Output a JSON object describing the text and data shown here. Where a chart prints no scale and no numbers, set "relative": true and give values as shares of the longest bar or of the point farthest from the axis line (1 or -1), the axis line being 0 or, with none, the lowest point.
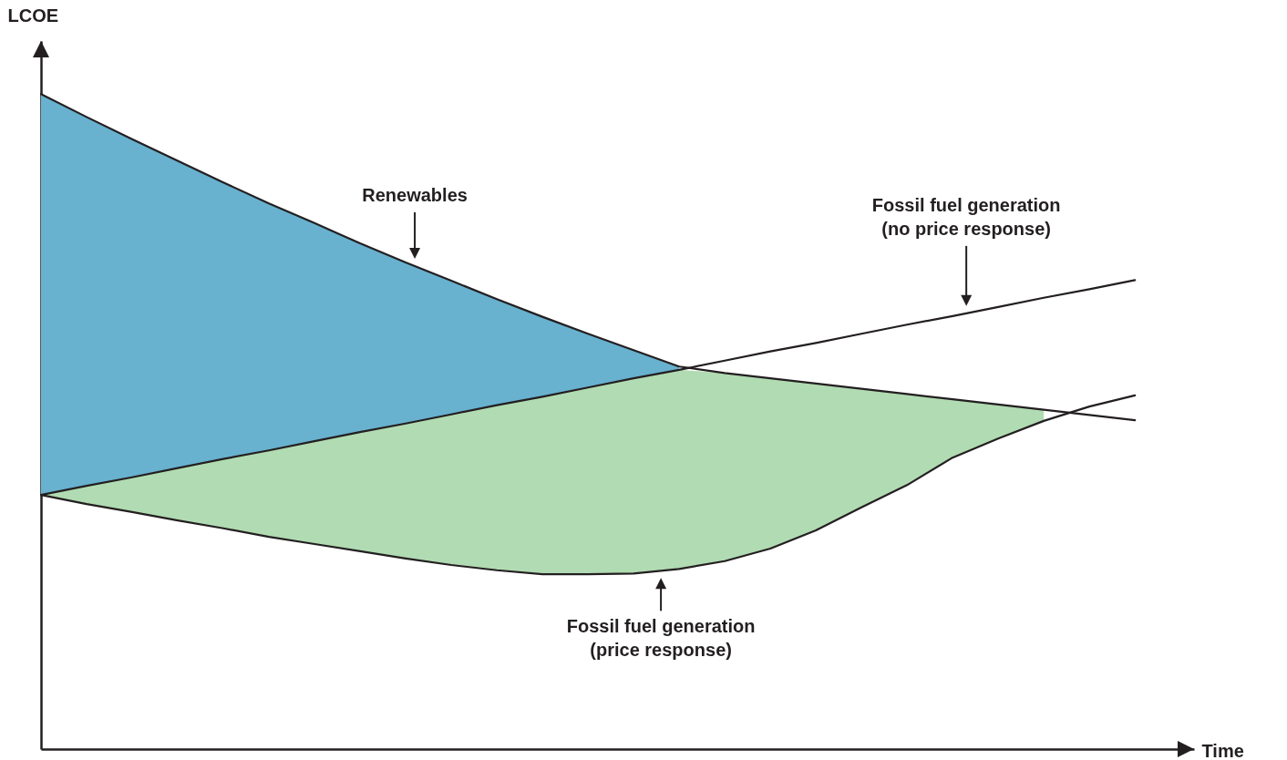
{
  "chart_data": {
    "type": "line",
    "relative": true,
    "xlabel": "Time",
    "ylabel": "LCOE",
    "line_style": "solid",
    "categories": [
      null,
      null,
      null,
      null,
      null,
      null,
      null,
      null,
      null,
      null,
      null,
      null,
      null,
      null,
      null,
      null,
      null,
      null,
      null,
      null,
      null,
      null,
      null,
      null,
      null
    ],
    "series": [
      {
        "type": "area",
        "color": "#68b1cf",
        "values": [
          1.0,
          0.965,
          0.931,
          0.898,
          0.865,
          0.833,
          0.803,
          0.772,
          0.743,
          0.715,
          0.687,
          0.66,
          0.634,
          0.609,
          0.584,
          null,
          null,
          null,
          null,
          null,
          null,
          null,
          null,
          null,
          null
        ]
      },
      {
        "type": "area",
        "color": "#b1dbb2",
        "values": [
          0.388,
          0.402,
          0.415,
          0.429,
          0.443,
          0.456,
          0.47,
          0.484,
          0.497,
          0.511,
          0.525,
          0.538,
          0.552,
          0.566,
          0.579,
          0.574,
          0.566,
          0.558,
          0.55,
          0.542,
          0.534,
          0.526,
          0.518,
          null,
          null
        ]
      },
      {
        "name": "Renewables",
        "color": "#231f20",
        "values": [
          1.0,
          0.965,
          0.931,
          0.898,
          0.865,
          0.833,
          0.803,
          0.772,
          0.743,
          0.715,
          0.687,
          0.66,
          0.634,
          0.609,
          0.584,
          0.574,
          0.566,
          0.558,
          0.55,
          0.542,
          0.534,
          0.526,
          0.518,
          0.51,
          0.502
        ]
      },
      {
        "name": "Fossil fuel generation\n(no price response)",
        "color": "#231f20",
        "values": [
          0.388,
          0.402,
          0.415,
          0.429,
          0.443,
          0.456,
          0.47,
          0.484,
          0.497,
          0.511,
          0.525,
          0.538,
          0.552,
          0.566,
          0.579,
          0.593,
          0.607,
          0.62,
          0.634,
          0.648,
          0.661,
          0.675,
          0.689,
          0.702,
          0.716
        ]
      },
      {
        "name": "Fossil fuel generation\n(price response)",
        "color": "#231f20",
        "values": [
          0.388,
          0.374,
          0.362,
          0.349,
          0.337,
          0.324,
          0.313,
          0.302,
          0.291,
          0.281,
          0.273,
          0.267,
          0.267,
          0.268,
          0.275,
          0.287,
          0.306,
          0.334,
          0.369,
          0.403,
          0.445,
          0.474,
          0.501,
          0.523,
          0.54
        ]
      }
    ]
  }
}
